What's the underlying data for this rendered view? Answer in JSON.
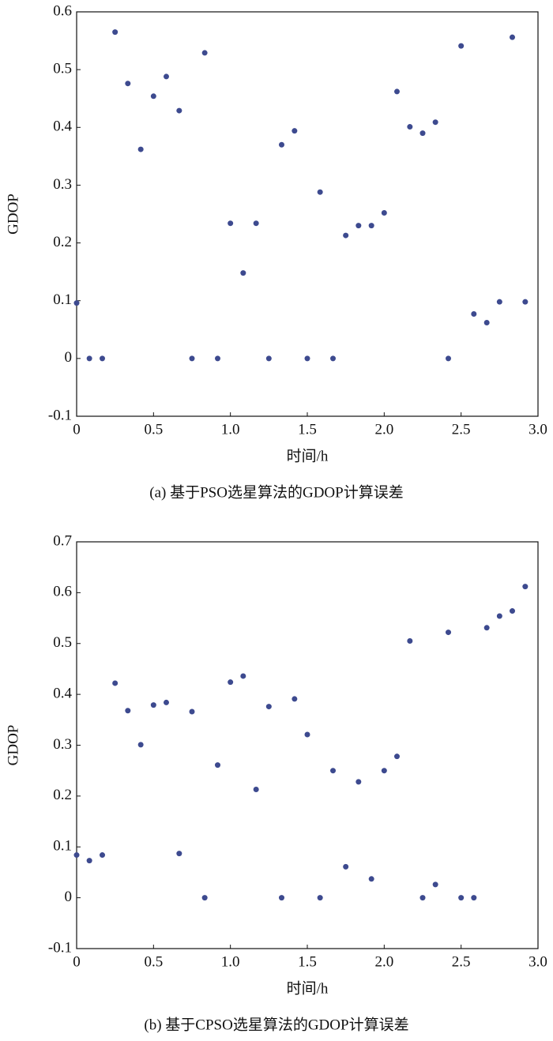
{
  "chart_data": [
    {
      "type": "scatter",
      "caption": "(a) 基于PSO选星算法的GDOP计算误差",
      "xlabel": "时间/h",
      "ylabel": "GDOP",
      "color": "#3d4a8f",
      "x": [
        0,
        0.083,
        0.167,
        0.25,
        0.333,
        0.417,
        0.5,
        0.583,
        0.667,
        0.75,
        0.833,
        0.917,
        1,
        1.083,
        1.167,
        1.25,
        1.333,
        1.417,
        1.5,
        1.583,
        1.667,
        1.75,
        1.833,
        1.917,
        2,
        2.083,
        2.167,
        2.25,
        2.333,
        2.417,
        2.5,
        2.583,
        2.667,
        2.75,
        2.833,
        2.917
      ],
      "values": [
        0.096,
        0,
        0,
        0.565,
        0.476,
        0.362,
        0.454,
        0.488,
        0.429,
        0,
        0.529,
        0,
        0.234,
        0.148,
        0.234,
        0,
        0.37,
        0.394,
        0,
        0.288,
        0,
        0.213,
        0.23,
        0.23,
        0.252,
        0.462,
        0.401,
        0.39,
        0.409,
        0,
        0.541,
        0.077,
        0.062,
        0.098,
        0.556,
        0.098
      ],
      "xlim": [
        0,
        3
      ],
      "xticks": [
        0,
        0.5,
        {
          "value": 1,
          "label": "1.0"
        },
        1.5,
        {
          "value": 2,
          "label": "2.0"
        },
        2.5,
        {
          "value": 3,
          "label": "3.0"
        }
      ],
      "ylim": [
        -0.1,
        0.6
      ],
      "yticks": [
        -0.1,
        0,
        0.1,
        0.2,
        0.3,
        0.4,
        0.5,
        0.6
      ]
    },
    {
      "type": "scatter",
      "caption": "(b) 基于CPSO选星算法的GDOP计算误差",
      "xlabel": "时间/h",
      "ylabel": "GDOP",
      "color": "#3d4a8f",
      "x": [
        0,
        0.083,
        0.167,
        0.25,
        0.333,
        0.417,
        0.5,
        0.583,
        0.667,
        0.75,
        0.833,
        0.917,
        1,
        1.083,
        1.167,
        1.25,
        1.333,
        1.417,
        1.5,
        1.583,
        1.667,
        1.75,
        1.833,
        1.917,
        2,
        2.083,
        2.167,
        2.25,
        2.333,
        2.417,
        2.5,
        2.583,
        2.667,
        2.75,
        2.833,
        2.917
      ],
      "values": [
        0.084,
        0.073,
        0.084,
        0.422,
        0.368,
        0.301,
        0.379,
        0.384,
        0.087,
        0.366,
        0,
        0.261,
        0.424,
        0.436,
        0.213,
        0.376,
        0,
        0.391,
        0.321,
        0,
        0.25,
        0.061,
        0.228,
        0.037,
        0.25,
        0.278,
        0.505,
        0,
        0.026,
        0.522,
        0,
        0,
        0.531,
        0.554,
        0.564,
        0.612
      ],
      "xlim": [
        0,
        3
      ],
      "xticks": [
        0,
        0.5,
        {
          "value": 1,
          "label": "1.0"
        },
        1.5,
        {
          "value": 2,
          "label": "2.0"
        },
        2.5,
        {
          "value": 3,
          "label": "3.0"
        }
      ],
      "ylim": [
        -0.1,
        0.7
      ],
      "yticks": [
        -0.1,
        0,
        0.1,
        0.2,
        0.3,
        0.4,
        0.5,
        0.6,
        0.7
      ]
    }
  ]
}
